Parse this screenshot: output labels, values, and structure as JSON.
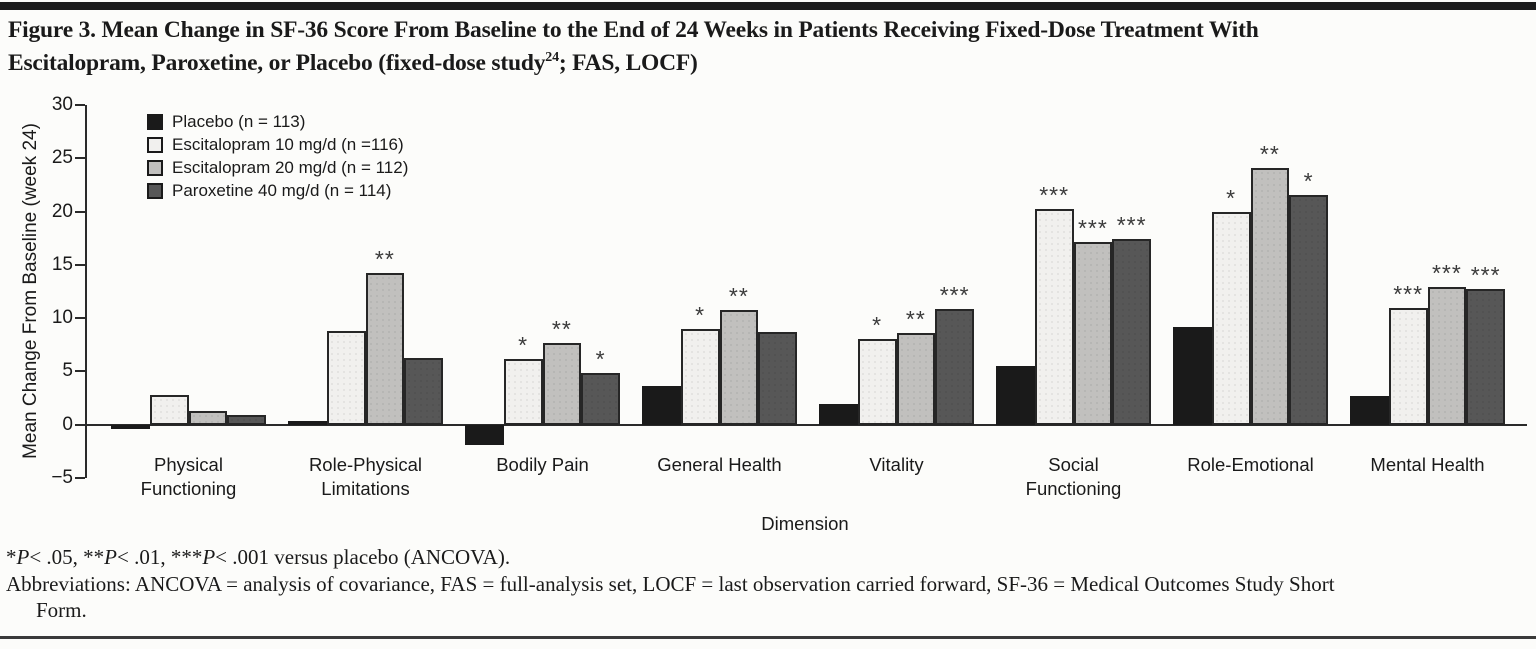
{
  "title": {
    "line1": "Figure 3. Mean Change in SF-36 Score From Baseline to the End of 24 Weeks in Patients Receiving Fixed-Dose Treatment With",
    "line2_pre": "Escitalopram, Paroxetine, or Placebo (fixed-dose study",
    "line2_sup": "24",
    "line2_post": "; FAS, LOCF)"
  },
  "chart_data": {
    "type": "bar",
    "xlabel": "Dimension",
    "ylabel": "Mean Change From Baseline (week 24)",
    "ylim": [
      -5,
      30
    ],
    "yticks": [
      30,
      25,
      20,
      15,
      10,
      5,
      0,
      -5
    ],
    "grid": false,
    "legend_position": "top-left",
    "categories": [
      "Physical\nFunctioning",
      "Role-Physical\nLimitations",
      "Bodily Pain",
      "General Health",
      "Vitality",
      "Social\nFunctioning",
      "Role-Emotional",
      "Mental Health"
    ],
    "series": [
      {
        "name": "Placebo (n = 113)",
        "color": "#1a1a1a",
        "values": [
          -0.4,
          0.2,
          -1.9,
          3.6,
          1.9,
          5.5,
          9.2,
          2.7
        ],
        "significance": [
          "",
          "",
          "",
          "",
          "",
          "",
          "",
          ""
        ]
      },
      {
        "name": "Escitalopram 10 mg/d (n =116)",
        "color": "#f1f0ee",
        "values": [
          2.8,
          8.8,
          6.2,
          9.0,
          8.0,
          20.2,
          20.0,
          11.0
        ],
        "significance": [
          "",
          "",
          "*",
          "*",
          "*",
          "***",
          "*",
          "***"
        ]
      },
      {
        "name": "Escitalopram 20 mg/d (n = 112)",
        "color": "#c1c0be",
        "values": [
          1.3,
          14.2,
          7.7,
          10.8,
          8.6,
          17.1,
          24.1,
          12.9
        ],
        "significance": [
          "",
          "**",
          "**",
          "**",
          "**",
          "***",
          "**",
          "***"
        ]
      },
      {
        "name": "Paroxetine 40 mg/d (n = 114)",
        "color": "#575757",
        "values": [
          0.9,
          6.3,
          4.9,
          8.7,
          10.9,
          17.4,
          21.6,
          12.7
        ],
        "significance": [
          "",
          "",
          "*",
          "",
          "***",
          "***",
          "*",
          "***"
        ]
      }
    ]
  },
  "footnotes": {
    "sig": {
      "s1": "*",
      "p1": "P",
      "t1": "< .05, **",
      "p2": "P",
      "t2": "< .01, ***",
      "p3": "P",
      "t3": "< .001 versus placebo (ANCOVA)."
    },
    "abbrev_line1": "Abbreviations: ANCOVA = analysis of covariance, FAS = full-analysis set, LOCF = last observation carried forward, SF-36 = Medical Outcomes Study Short",
    "abbrev_line2": "Form."
  }
}
